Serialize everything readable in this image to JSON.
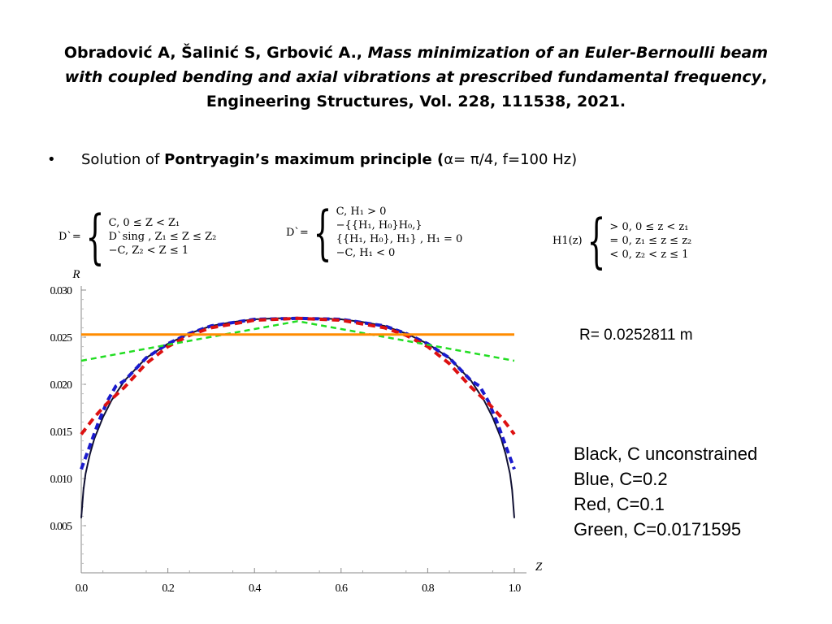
{
  "header": {
    "authors": "Obradović A, Šalinić S, Grbović A.,",
    "paper_title": "Mass minimization of an Euler-Bernoulli beam with coupled bending and axial vibrations at prescribed fundamental frequency",
    "journal": "Engineering Structures, Vol. 228, 111538, 2021."
  },
  "bullet": {
    "marker": "•",
    "prefix": "Solution of",
    "bold": "Pontryagin’s maximum principle (",
    "suffix": "α= π/4, f=100 Hz)"
  },
  "equations": {
    "eq1": {
      "lhs": "D`=",
      "lines": [
        "C, 0 ≤  Z < Z₁",
        "D`sing        , Z₁ ≤  Z ≤ Z₂",
        "−C, Z₂ < Z ≤ 1"
      ]
    },
    "eq2": {
      "lhs": "D`=",
      "lines": [
        "C,              H₁ > 0",
        "−{{H₁, H₀}H₀,}",
        "   {{H₁, H₀}, H₁}  , H₁ = 0",
        "−C,          H₁ < 0"
      ]
    },
    "eq3": {
      "lhs": "H1(z)",
      "lines": [
        "> 0, 0 ≤  z < z₁",
        "= 0, z₁ ≤  z ≤ z₂",
        "< 0, z₂ < z ≤ 1"
      ]
    }
  },
  "annotations": {
    "r_value": "R= 0.0252811 m",
    "legend": [
      "Black, C unconstrained",
      "Blue, C=0.2",
      "Red, C=0.1",
      "Green, C=0.0171595"
    ]
  },
  "chart_data": {
    "type": "line",
    "xlabel": "Z",
    "ylabel": "R",
    "xlim": [
      0,
      1
    ],
    "ylim": [
      0,
      0.03
    ],
    "x_ticks": [
      "0.0",
      "0.2",
      "0.4",
      "0.6",
      "0.8",
      "1.0"
    ],
    "y_ticks": [
      "0.005",
      "0.010",
      "0.015",
      "0.020",
      "0.025",
      "0.030"
    ],
    "colors": {
      "black": "#111133",
      "blue": "#1a1acc",
      "red": "#dd1111",
      "green": "#22dd22",
      "orange": "#ff8c00"
    },
    "series": [
      {
        "color": "black",
        "style": "solid",
        "x": [
          0.0,
          0.005,
          0.01,
          0.02,
          0.03,
          0.05,
          0.07,
          0.1,
          0.15,
          0.2,
          0.25,
          0.3,
          0.35,
          0.4,
          0.45,
          0.5,
          0.55,
          0.6,
          0.65,
          0.7,
          0.75,
          0.8,
          0.85,
          0.9,
          0.93,
          0.95,
          0.97,
          0.98,
          0.99,
          0.995,
          1.0
        ],
        "y": [
          0.0058,
          0.0088,
          0.0105,
          0.0126,
          0.0142,
          0.0165,
          0.0183,
          0.0204,
          0.0228,
          0.0243,
          0.0254,
          0.0262,
          0.0266,
          0.0269,
          0.027,
          0.027,
          0.027,
          0.0269,
          0.0266,
          0.0262,
          0.0254,
          0.0243,
          0.0228,
          0.0204,
          0.0183,
          0.0165,
          0.0142,
          0.0126,
          0.0105,
          0.0088,
          0.0058
        ]
      },
      {
        "color": "blue",
        "style": "dashed",
        "x": [
          0.0,
          0.02,
          0.04,
          0.06,
          0.08,
          0.1,
          0.15,
          0.2,
          0.25,
          0.3,
          0.4,
          0.5,
          0.6,
          0.7,
          0.75,
          0.8,
          0.85,
          0.9,
          0.92,
          0.94,
          0.96,
          0.98,
          1.0
        ],
        "y": [
          0.011,
          0.0135,
          0.016,
          0.0182,
          0.0198,
          0.0204,
          0.0228,
          0.0243,
          0.0254,
          0.0262,
          0.0269,
          0.027,
          0.0269,
          0.0262,
          0.0254,
          0.0243,
          0.0228,
          0.0204,
          0.0198,
          0.0182,
          0.016,
          0.0135,
          0.011
        ]
      },
      {
        "color": "red",
        "style": "dashed",
        "x": [
          0.0,
          0.03,
          0.06,
          0.1,
          0.15,
          0.2,
          0.25,
          0.3,
          0.4,
          0.5,
          0.6,
          0.7,
          0.75,
          0.8,
          0.85,
          0.9,
          0.94,
          0.97,
          1.0
        ],
        "y": [
          0.0147,
          0.0165,
          0.018,
          0.0197,
          0.0222,
          0.024,
          0.0252,
          0.026,
          0.0268,
          0.027,
          0.0268,
          0.026,
          0.0252,
          0.024,
          0.0222,
          0.0197,
          0.018,
          0.0165,
          0.0147
        ]
      },
      {
        "color": "green",
        "style": "dashed",
        "x": [
          0.0,
          0.2,
          0.5,
          0.8,
          1.0
        ],
        "y": [
          0.0225,
          0.0242,
          0.0267,
          0.0242,
          0.0225
        ]
      },
      {
        "color": "orange",
        "style": "solid",
        "x": [
          0.0,
          1.0
        ],
        "y": [
          0.0252811,
          0.0252811
        ]
      }
    ]
  }
}
